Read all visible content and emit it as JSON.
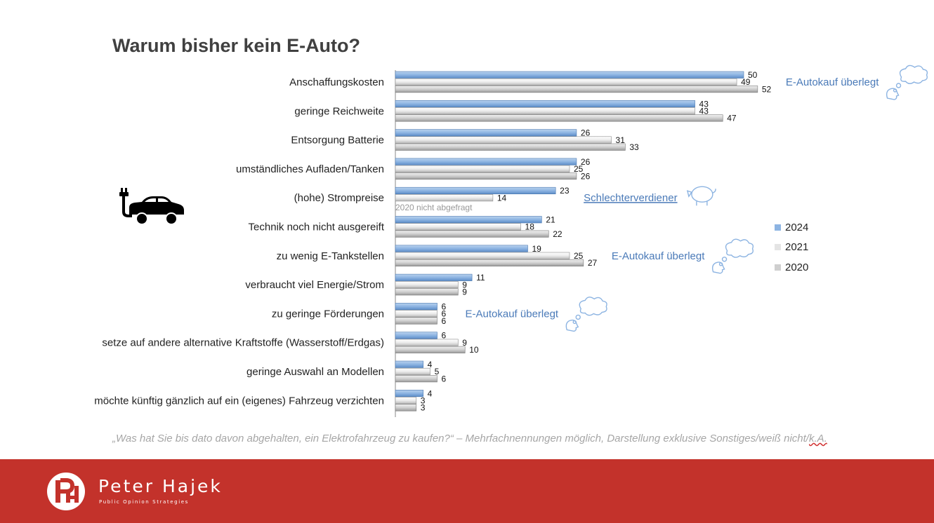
{
  "chart_data": {
    "type": "bar",
    "orientation": "horizontal",
    "title": "Warum bisher kein E-Auto?",
    "categories": [
      "Anschaffungskosten",
      "geringe Reichweite",
      "Entsorgung Batterie",
      "umständliches Aufladen/Tanken",
      "(hohe) Strompreise",
      "Technik noch nicht ausgereift",
      "zu wenig E-Tankstellen",
      "verbraucht viel Energie/Strom",
      "zu geringe Förderungen",
      "setze auf andere alternative Kraftstoffe (Wasserstoff/Erdgas)",
      "geringe Auswahl an Modellen",
      "möchte künftig gänzlich auf ein (eigenes) Fahrzeug verzichten"
    ],
    "series": [
      {
        "name": "2024",
        "color": "#8db4e2",
        "values": [
          50,
          43,
          26,
          26,
          23,
          21,
          19,
          11,
          6,
          6,
          4,
          4
        ]
      },
      {
        "name": "2021",
        "color": "#e8e8e8",
        "values": [
          49,
          43,
          31,
          25,
          14,
          18,
          25,
          9,
          6,
          9,
          5,
          3
        ]
      },
      {
        "name": "2020",
        "color": "#d0d0d0",
        "values": [
          52,
          47,
          33,
          26,
          null,
          22,
          27,
          9,
          6,
          10,
          6,
          3
        ]
      }
    ],
    "xlim": [
      0,
      60
    ],
    "legend_position": "right",
    "annotations": [
      {
        "category_index": 0,
        "text": "E-Autokauf überlegt",
        "icon": "thought-bubble-icon"
      },
      {
        "category_index": 4,
        "text": "Schlechterverdiener",
        "icon": "piggy-bank-icon"
      },
      {
        "category_index": 4,
        "text": "2020 nicht abgefragt",
        "icon": ""
      },
      {
        "category_index": 6,
        "text": "E-Autokauf überlegt",
        "icon": "thought-bubble-icon"
      },
      {
        "category_index": 8,
        "text": "E-Autokauf überlegt",
        "icon": "thought-bubble-icon"
      }
    ]
  },
  "footnote": {
    "main": "„Was hat Sie bis dato davon abgehalten, ein Elektrofahrzeug zu kaufen?“ – Mehrfachnennungen möglich, Darstellung exklusive Sonstiges/weiß nicht/",
    "tail": "k.A."
  },
  "footer": {
    "brand_name": "Peter Hajek",
    "brand_tagline": "Public Opinion Strategies",
    "background": "#c3322b"
  },
  "icons": {
    "car": "electric-car-icon",
    "logo": "ph-logo-icon"
  }
}
